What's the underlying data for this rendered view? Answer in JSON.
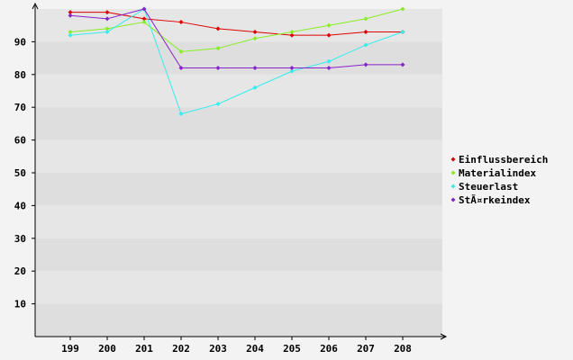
{
  "chart_data": {
    "type": "line",
    "categories": [
      "199",
      "200",
      "201",
      "202",
      "203",
      "204",
      "205",
      "206",
      "207",
      "208"
    ],
    "y_ticks": [
      "10",
      "20",
      "30",
      "40",
      "50",
      "60",
      "70",
      "80",
      "90"
    ],
    "ylim": [
      0,
      100
    ],
    "grid": "horizontal bands",
    "legend_position": "right",
    "series": [
      {
        "name": "Einflussbereich",
        "color": "#dd0000",
        "values": [
          99,
          99,
          97,
          96,
          94,
          93,
          92,
          92,
          93,
          93
        ]
      },
      {
        "name": "Materialindex",
        "color": "#88ee22",
        "values": [
          93,
          94,
          96,
          87,
          88,
          91,
          93,
          95,
          97,
          100
        ]
      },
      {
        "name": "Steuerlast",
        "color": "#33eeee",
        "values": [
          92,
          93,
          100,
          68,
          71,
          76,
          81,
          84,
          89,
          93
        ]
      },
      {
        "name": "StÃ¤rkeindex",
        "color": "#8822cc",
        "values": [
          98,
          97,
          100,
          82,
          82,
          82,
          82,
          82,
          83,
          83
        ]
      }
    ]
  }
}
